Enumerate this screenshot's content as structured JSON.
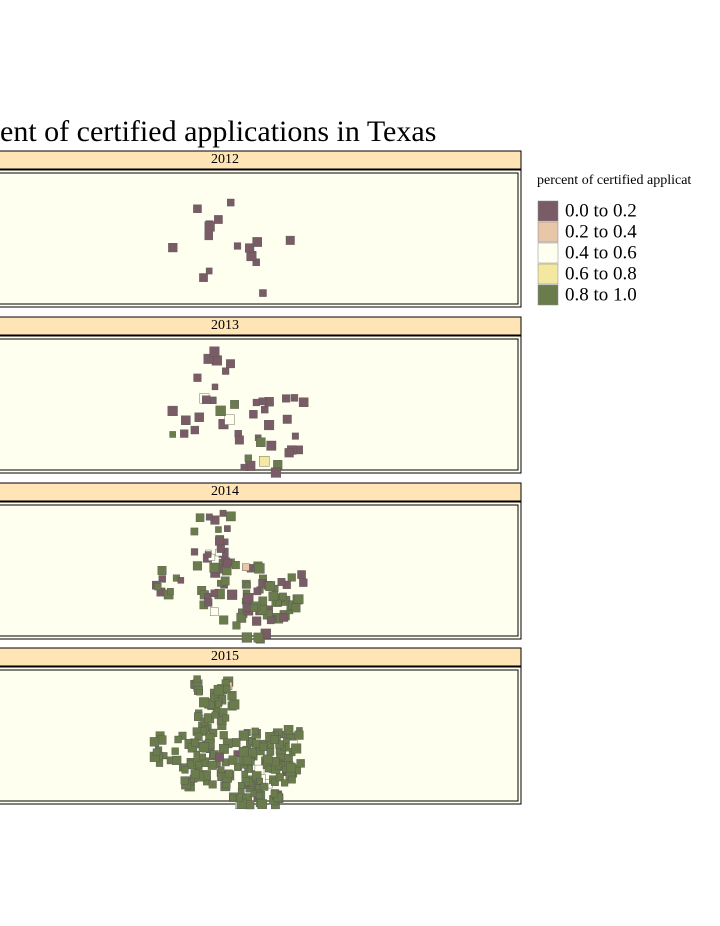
{
  "title": "ent of certified applications in Texas",
  "panels": [
    {
      "label": "2012"
    },
    {
      "label": "2013"
    },
    {
      "label": "2014"
    },
    {
      "label": "2015"
    }
  ],
  "legend": {
    "title": "percent of certified applicat",
    "items": [
      {
        "label": "0.0 to 0.2",
        "color": "#7a5c66"
      },
      {
        "label": "0.2 to 0.4",
        "color": "#e8c6a8"
      },
      {
        "label": "0.4 to 0.6",
        "color": "#fffff0"
      },
      {
        "label": "0.6 to 0.8",
        "color": "#f2e8a0"
      },
      {
        "label": "0.8 to 1.0",
        "color": "#6b7c4c"
      }
    ]
  }
}
